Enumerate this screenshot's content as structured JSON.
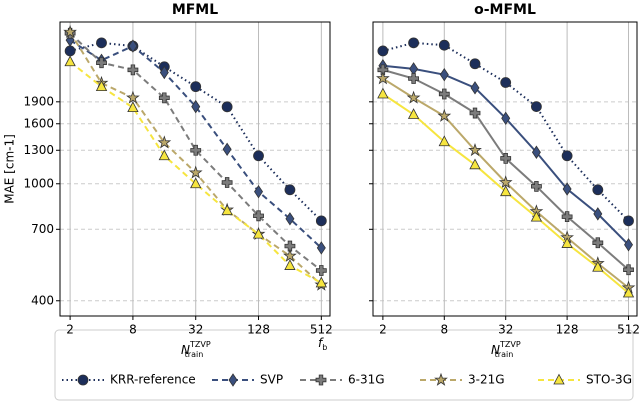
{
  "legend": {
    "title": {
      "base": "f",
      "sub": "b"
    }
  },
  "chart_data": [
    {
      "type": "line",
      "title": "MFML",
      "ylabel": "MAE [cm-1]",
      "xlabel": {
        "base": "N",
        "sub": "train",
        "sup": "TZVP"
      },
      "xlog": true,
      "ylog": true,
      "grid": true,
      "x": [
        2,
        4,
        8,
        16,
        32,
        64,
        128,
        256,
        512
      ],
      "xlim": [
        1.6,
        620
      ],
      "xticks": [
        2,
        8,
        32,
        128,
        512
      ],
      "ylim": [
        355,
        3550
      ],
      "yticks": [
        400,
        700,
        1000,
        1300,
        1600,
        1900
      ],
      "series": [
        {
          "name": "KRR-reference",
          "color": "#1c2e5a",
          "marker": "circle",
          "dash": "dotted",
          "values": [
            2830,
            3015,
            2940,
            2500,
            2140,
            1827,
            1245,
            954,
            748
          ]
        },
        {
          "name": "SVP",
          "color": "#3a4f7d",
          "marker": "diamond",
          "dash": "dashed",
          "values": [
            3080,
            2630,
            2940,
            2390,
            1830,
            1310,
            940,
            760,
            605
          ]
        },
        {
          "name": "6-31G",
          "color": "#7c7c7c",
          "marker": "plus",
          "dash": "dashed",
          "values": [
            3250,
            2580,
            2440,
            1960,
            1300,
            1010,
            778,
            614,
            507
          ]
        },
        {
          "name": "3-21G",
          "color": "#bba86a",
          "marker": "star",
          "dash": "dashed",
          "values": [
            3280,
            2200,
            1960,
            1380,
            1090,
            815,
            674,
            568,
            453
          ]
        },
        {
          "name": "STO-3G",
          "color": "#f6e53f",
          "marker": "triangle",
          "dash": "dashed",
          "values": [
            2600,
            2140,
            1815,
            1245,
            1000,
            810,
            674,
            527,
            460
          ]
        }
      ]
    },
    {
      "type": "line",
      "title": "o-MFML",
      "xlabel": {
        "base": "N",
        "sub": "train",
        "sup": "TZVP"
      },
      "xlog": true,
      "ylog": true,
      "grid": true,
      "x": [
        2,
        4,
        8,
        16,
        32,
        64,
        128,
        256,
        512
      ],
      "xlim": [
        1.6,
        620
      ],
      "xticks": [
        2,
        8,
        32,
        128,
        512
      ],
      "ylim": [
        355,
        3550
      ],
      "yticks": [
        400,
        700,
        1000,
        1300,
        1600,
        1900
      ],
      "series": [
        {
          "name": "KRR-reference",
          "color": "#1c2e5a",
          "marker": "circle",
          "dash": "dotted",
          "values": [
            2830,
            3015,
            2960,
            2560,
            2210,
            1830,
            1245,
            954,
            748
          ]
        },
        {
          "name": "SVP",
          "color": "#3a4f7d",
          "marker": "diamond",
          "dash": "solid",
          "values": [
            2520,
            2460,
            2350,
            2120,
            1670,
            1280,
            960,
            790,
            620
          ]
        },
        {
          "name": "6-31G",
          "color": "#7c7c7c",
          "marker": "plus",
          "dash": "solid",
          "values": [
            2440,
            2280,
            2020,
            1740,
            1220,
            980,
            773,
            630,
            510
          ]
        },
        {
          "name": "3-21G",
          "color": "#bba86a",
          "marker": "star",
          "dash": "solid",
          "values": [
            2280,
            1960,
            1700,
            1300,
            1010,
            805,
            656,
            536,
            443
          ]
        },
        {
          "name": "STO-3G",
          "color": "#f6e53f",
          "marker": "triangle",
          "dash": "solid",
          "values": [
            2020,
            1720,
            1390,
            1160,
            940,
            770,
            626,
            520,
            425
          ]
        }
      ]
    }
  ]
}
